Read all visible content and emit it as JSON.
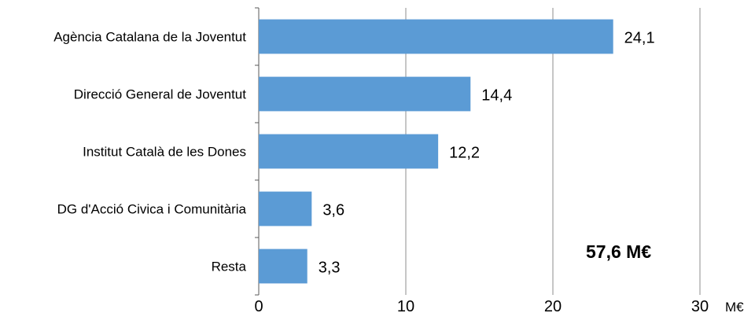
{
  "chart_data": {
    "type": "bar",
    "orientation": "horizontal",
    "categories": [
      "Agència Catalana de la Joventut",
      "Direcció General de Joventut",
      "Institut Català de les Dones",
      "DG d'Acció Civica i Comunitària",
      "Resta"
    ],
    "values": [
      24.1,
      14.4,
      12.2,
      3.6,
      3.3
    ],
    "value_labels": [
      "24,1",
      "14,4",
      "12,2",
      "3,6",
      "3,3"
    ],
    "xlim": [
      0,
      30
    ],
    "xticks": [
      0,
      10,
      20,
      30
    ],
    "xtick_labels": [
      "0",
      "10",
      "20",
      "30"
    ],
    "xunit": "M€",
    "annotation": "57,6 M€",
    "grid": "vertical",
    "legend": "none",
    "bar_color": "#5b9bd5"
  }
}
